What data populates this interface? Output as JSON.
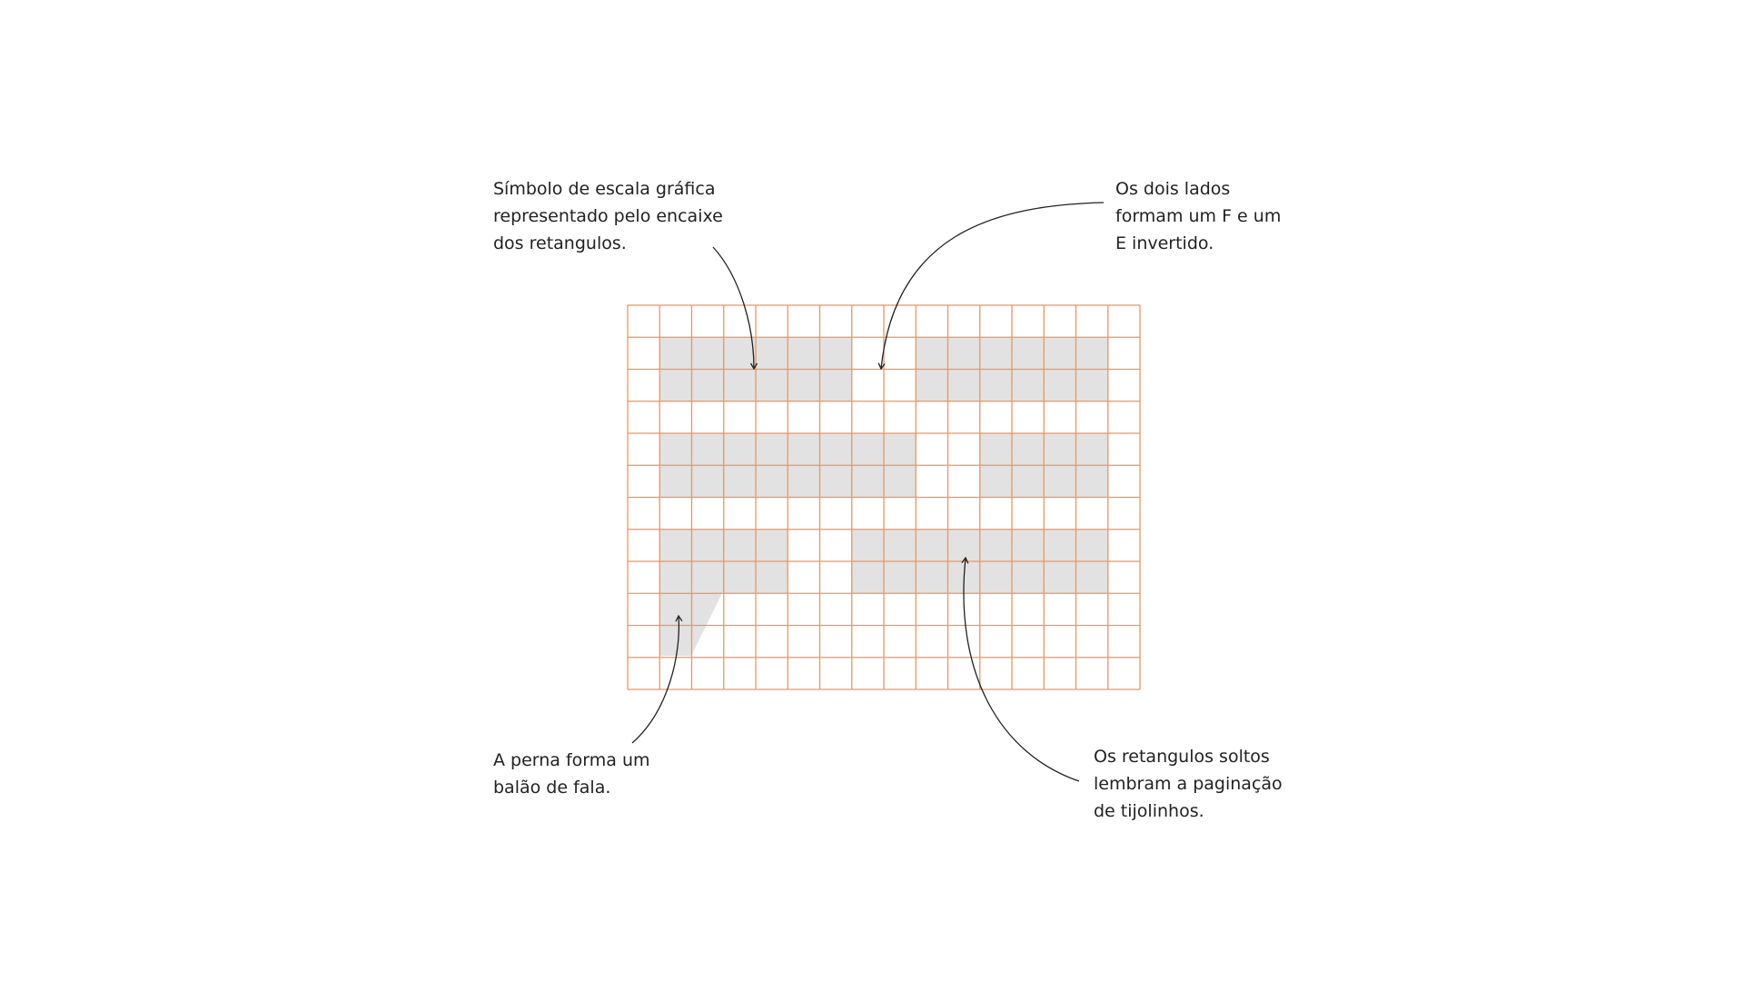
{
  "colors": {
    "background": "#ffffff",
    "grid_line": "#ee9460",
    "fill": "#e2e2e2",
    "text": "#222222",
    "arrow": "#222222"
  },
  "grid": {
    "columns": 16,
    "rows": 12,
    "filled_blocks": [
      {
        "name": "block-top-left",
        "col_start": 1,
        "col_end": 7,
        "row_start": 1,
        "row_end": 3
      },
      {
        "name": "block-top-right",
        "col_start": 9,
        "col_end": 15,
        "row_start": 1,
        "row_end": 3
      },
      {
        "name": "block-middle-left",
        "col_start": 1,
        "col_end": 9,
        "row_start": 4,
        "row_end": 6
      },
      {
        "name": "block-middle-right",
        "col_start": 11,
        "col_end": 15,
        "row_start": 4,
        "row_end": 6
      },
      {
        "name": "block-bottom-left",
        "col_start": 1,
        "col_end": 5,
        "row_start": 7,
        "row_end": 9
      },
      {
        "name": "block-bottom-right",
        "col_start": 7,
        "col_end": 15,
        "row_start": 7,
        "row_end": 9
      }
    ]
  },
  "annotations": {
    "top_left": {
      "lines": [
        "Símbolo de escala gráfica",
        "representado pelo encaixe",
        "dos retangulos."
      ]
    },
    "top_right": {
      "lines": [
        "Os dois lados",
        "formam um F e um",
        "E invertido."
      ]
    },
    "bottom_left": {
      "lines": [
        "A perna forma um",
        "balão de fala."
      ]
    },
    "bottom_right": {
      "lines": [
        "Os retangulos soltos",
        "lembram a paginação",
        "de tijolinhos."
      ]
    }
  }
}
